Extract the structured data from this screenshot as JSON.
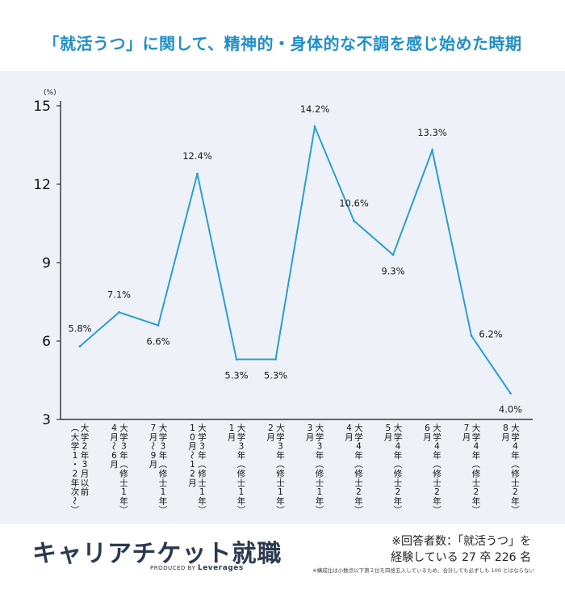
{
  "header": {
    "title": "「就活うつ」に関して、精神的・身体的な不調を感じ始めた時期"
  },
  "chart_data": {
    "type": "line",
    "unit": "(%)",
    "ylim": [
      3,
      15
    ],
    "yticks": [
      "3",
      "6",
      "9",
      "12",
      "15"
    ],
    "ytick_values": [
      3,
      6,
      9,
      12,
      15
    ],
    "grid": false,
    "line_color": "#2a9fd0",
    "categories": [
      "大学2年3月以前（大学1・2年次〜）",
      "大学3年（修士1年）4月〜6月",
      "大学3年（修士1年）7月〜9月",
      "大学3年（修士1年）10月〜12月",
      "大学3年（修士1年）1月",
      "大学3年（修士1年）2月",
      "大学3年（修士1年）3月",
      "大学4年（修士2年）4月",
      "大学4年（修士2年）5月",
      "大学4年（修士2年）6月",
      "大学4年（修士2年）7月",
      "大学4年（修士2年）8月"
    ],
    "category_lines": [
      [
        "大学2年3月以前",
        "（大学1・2年次〜）"
      ],
      [
        "大学3年（修士1年）",
        "4月〜6月"
      ],
      [
        "大学3年（修士1年）",
        "7月〜9月"
      ],
      [
        "大学3年（修士1年）",
        "10月〜12月"
      ],
      [
        "大学3年（修士1年）",
        "1月"
      ],
      [
        "大学3年（修士1年）",
        "2月"
      ],
      [
        "大学3年（修士1年）",
        "3月"
      ],
      [
        "大学4年（修士2年）",
        "4月"
      ],
      [
        "大学4年（修士2年）",
        "5月"
      ],
      [
        "大学4年（修士2年）",
        "6月"
      ],
      [
        "大学4年（修士2年）",
        "7月"
      ],
      [
        "大学4年（修士2年）",
        "8月"
      ]
    ],
    "values": [
      5.8,
      7.1,
      6.6,
      12.4,
      5.3,
      5.3,
      14.2,
      10.6,
      9.3,
      13.3,
      6.2,
      4.0
    ],
    "labels": [
      "5.8%",
      "7.1%",
      "6.6%",
      "12.4%",
      "5.3%",
      "5.3%",
      "14.2%",
      "10.6%",
      "9.3%",
      "13.3%",
      "6.2%",
      "4.0%"
    ],
    "label_pos": [
      "above",
      "above",
      "below",
      "above",
      "below",
      "below",
      "above",
      "above",
      "below",
      "above",
      "right",
      "below"
    ]
  },
  "footer": {
    "logo_text": "キャリアチケット就職",
    "produced_by": "PRODUCED BY",
    "produced_brand": "Leverages",
    "note_line1": "※回答者数：「就活うつ」を",
    "note_line2": "経験している 27 卒 226 名",
    "subnote": "※構成比は小数点以下第２位を四捨五入しているため、合計しても必ずしも 100 とはならない"
  }
}
